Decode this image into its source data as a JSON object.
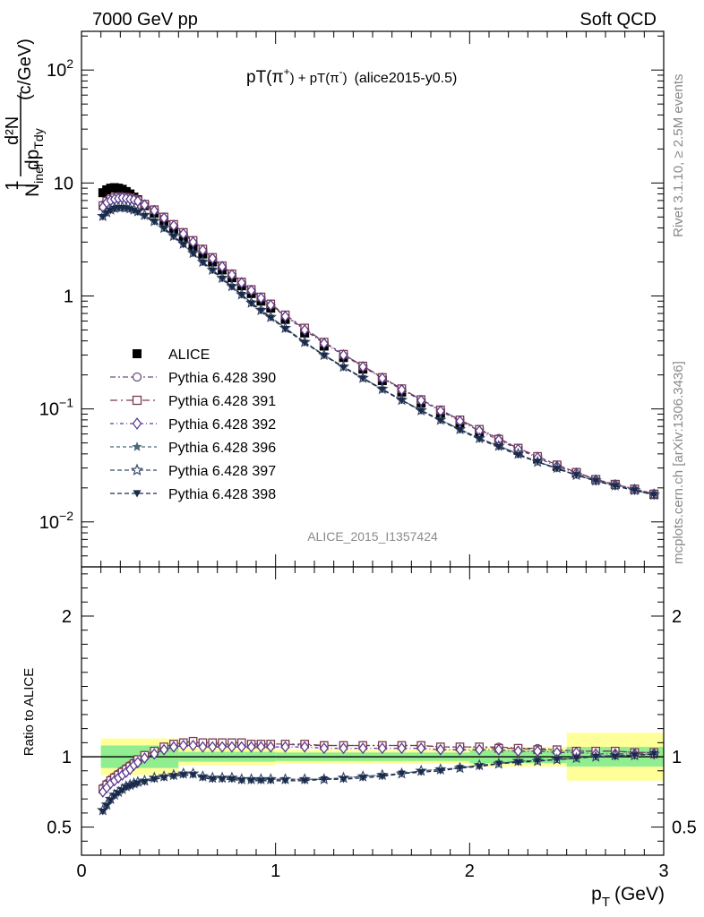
{
  "header": {
    "left": "7000 GeV pp",
    "right": "Soft QCD"
  },
  "side_labels": {
    "rivet": "Rivet 3.1.10, ≥ 2.5M events",
    "mcplots": "mcplots.cern.ch [arXiv:1306.3436]"
  },
  "chart_data": [
    {
      "type": "scatter",
      "title": "pT(π⁺) + pT(π⁻) (alice2015-y0.5)",
      "title_parts": {
        "a": "pT(π",
        "a_sup": "+",
        "b": ") + pT(π",
        "b_sup": "-",
        "c": ")",
        "d": "(alice2015-y0.5)"
      },
      "watermark": "ALICE_2015_I1357424",
      "xlabel": "p_T (GeV)",
      "xlabel_parts": {
        "p": "p",
        "sub": "T",
        "unit": "(GeV)"
      },
      "ylabel": "1/N_inel d²N/dp_T dy (c/GeV)",
      "ylabel_parts": {
        "one": "1",
        "den": "N",
        "den_sub": "inel",
        "num": "d²N",
        "den2": "dp",
        "den2_sub": "Tdy",
        "unit": "(c/GeV)"
      },
      "yscale": "log",
      "xlim": [
        0,
        3
      ],
      "ylim": [
        0.004,
        220
      ],
      "x_ticks": [
        "0",
        "1",
        "2",
        "3"
      ],
      "y_ticks": [
        "10⁻²",
        "10⁻¹",
        "1",
        "10",
        "10²"
      ],
      "y_tick_parts": [
        {
          "base": "10",
          "exp": "−2",
          "value": 0.01
        },
        {
          "base": "10",
          "exp": "−1",
          "value": 0.1
        },
        {
          "base": "1",
          "exp": "",
          "value": 1
        },
        {
          "base": "10",
          "exp": "",
          "value": 10
        },
        {
          "base": "10",
          "exp": "2",
          "value": 100
        }
      ],
      "legend_position": "left-middle",
      "x": [
        0.11,
        0.13,
        0.15,
        0.17,
        0.19,
        0.21,
        0.23,
        0.25,
        0.27,
        0.29,
        0.325,
        0.375,
        0.425,
        0.475,
        0.525,
        0.575,
        0.625,
        0.675,
        0.725,
        0.775,
        0.825,
        0.875,
        0.925,
        0.975,
        1.05,
        1.15,
        1.25,
        1.35,
        1.45,
        1.55,
        1.65,
        1.75,
        1.85,
        1.95,
        2.05,
        2.15,
        2.25,
        2.35,
        2.45,
        2.55,
        2.65,
        2.75,
        2.85,
        2.95
      ],
      "series": [
        {
          "name": "ALICE",
          "color": "#000000",
          "marker": "filled-square",
          "values": [
            8.2,
            8.7,
            9.0,
            9.1,
            9.0,
            8.8,
            8.4,
            8.0,
            7.5,
            7.1,
            6.3,
            5.4,
            4.6,
            3.9,
            3.3,
            2.75,
            2.35,
            2.0,
            1.7,
            1.45,
            1.23,
            1.05,
            0.9,
            0.78,
            0.62,
            0.47,
            0.36,
            0.285,
            0.225,
            0.178,
            0.141,
            0.113,
            0.092,
            0.075,
            0.062,
            0.051,
            0.043,
            0.036,
            0.031,
            0.027,
            0.0237,
            0.0215,
            0.0194,
            0.0175
          ]
        },
        {
          "name": "Pythia 6.428 390",
          "color": "#6b4e7a",
          "marker": "open-circle",
          "dash": "6,3,2,3",
          "values": [
            6.4,
            7.0,
            7.3,
            7.5,
            7.6,
            7.6,
            7.5,
            7.4,
            7.2,
            7.0,
            6.5,
            5.8,
            5.0,
            4.3,
            3.65,
            3.1,
            2.6,
            2.18,
            1.84,
            1.56,
            1.32,
            1.13,
            0.97,
            0.84,
            0.67,
            0.51,
            0.39,
            0.305,
            0.24,
            0.19,
            0.151,
            0.121,
            0.098,
            0.08,
            0.066,
            0.055,
            0.045,
            0.038,
            0.032,
            0.0275,
            0.0238,
            0.0215,
            0.0196,
            0.0177
          ]
        },
        {
          "name": "Pythia 6.428 391",
          "color": "#7a3a4e",
          "marker": "open-square",
          "dash": "8,4,2,4",
          "values": [
            6.3,
            6.9,
            7.2,
            7.4,
            7.5,
            7.5,
            7.5,
            7.4,
            7.2,
            7.0,
            6.5,
            5.8,
            5.0,
            4.3,
            3.65,
            3.1,
            2.6,
            2.19,
            1.85,
            1.57,
            1.33,
            1.14,
            0.98,
            0.85,
            0.68,
            0.52,
            0.39,
            0.305,
            0.24,
            0.19,
            0.151,
            0.121,
            0.098,
            0.08,
            0.066,
            0.054,
            0.045,
            0.038,
            0.032,
            0.0275,
            0.0238,
            0.0215,
            0.0196,
            0.0177
          ]
        },
        {
          "name": "Pythia 6.428 392",
          "color": "#5a3a8c",
          "marker": "open-diamond",
          "dash": "4,3,1,3",
          "values": [
            6.1,
            6.7,
            7.0,
            7.2,
            7.3,
            7.4,
            7.3,
            7.2,
            7.1,
            6.9,
            6.4,
            5.7,
            4.9,
            4.2,
            3.55,
            3.0,
            2.55,
            2.15,
            1.82,
            1.54,
            1.31,
            1.12,
            0.96,
            0.83,
            0.66,
            0.5,
            0.38,
            0.3,
            0.236,
            0.187,
            0.148,
            0.119,
            0.096,
            0.078,
            0.064,
            0.053,
            0.044,
            0.037,
            0.031,
            0.027,
            0.0235,
            0.0213,
            0.0194,
            0.0176
          ]
        },
        {
          "name": "Pythia 6.428 396",
          "color": "#4a6a7a",
          "marker": "filled-star",
          "dash": "4,3",
          "values": [
            5.1,
            5.5,
            5.8,
            6.0,
            6.1,
            6.1,
            6.05,
            5.95,
            5.8,
            5.6,
            5.2,
            4.6,
            4.0,
            3.4,
            2.9,
            2.4,
            2.0,
            1.7,
            1.44,
            1.22,
            1.03,
            0.87,
            0.75,
            0.65,
            0.52,
            0.39,
            0.3,
            0.236,
            0.188,
            0.15,
            0.12,
            0.097,
            0.08,
            0.066,
            0.055,
            0.047,
            0.04,
            0.034,
            0.03,
            0.026,
            0.0232,
            0.021,
            0.0191,
            0.0174
          ]
        },
        {
          "name": "Pythia 6.428 397",
          "color": "#3a4a6a",
          "marker": "open-star",
          "dash": "5,3",
          "values": [
            5.1,
            5.5,
            5.8,
            6.0,
            6.1,
            6.1,
            6.05,
            5.95,
            5.8,
            5.6,
            5.2,
            4.6,
            4.0,
            3.4,
            2.9,
            2.4,
            2.0,
            1.7,
            1.44,
            1.22,
            1.03,
            0.87,
            0.75,
            0.65,
            0.52,
            0.39,
            0.3,
            0.236,
            0.188,
            0.15,
            0.12,
            0.097,
            0.08,
            0.066,
            0.055,
            0.047,
            0.04,
            0.034,
            0.03,
            0.026,
            0.0232,
            0.021,
            0.0191,
            0.0174
          ]
        },
        {
          "name": "Pythia 6.428 398",
          "color": "#1a2a4a",
          "marker": "filled-triangle-down",
          "dash": "5,3",
          "values": [
            5.0,
            5.4,
            5.7,
            5.9,
            6.0,
            6.0,
            5.95,
            5.85,
            5.7,
            5.5,
            5.1,
            4.55,
            3.95,
            3.35,
            2.85,
            2.38,
            1.98,
            1.68,
            1.42,
            1.2,
            1.02,
            0.86,
            0.74,
            0.64,
            0.51,
            0.385,
            0.297,
            0.233,
            0.186,
            0.148,
            0.119,
            0.096,
            0.079,
            0.065,
            0.054,
            0.046,
            0.039,
            0.034,
            0.0295,
            0.026,
            0.023,
            0.0208,
            0.019,
            0.0173
          ]
        }
      ]
    },
    {
      "type": "scatter",
      "title": "",
      "xlabel": "p_T (GeV)",
      "ylabel": "Ratio to ALICE",
      "xlim": [
        0,
        3
      ],
      "ylim": [
        0.3,
        2.35
      ],
      "x_ticks": [
        "0",
        "1",
        "2",
        "3"
      ],
      "y_ticks": [
        "0.5",
        "1",
        "2"
      ],
      "y_tick_values": [
        0.5,
        1,
        2
      ],
      "reference_line": 1,
      "bands": {
        "x_edges": [
          0.1,
          0.5,
          1.0,
          1.5,
          2.0,
          2.5,
          3.0
        ],
        "yellow_halfwidth": [
          0.13,
          0.06,
          0.05,
          0.05,
          0.07,
          0.17
        ],
        "green_halfwidth": [
          0.08,
          0.035,
          0.03,
          0.03,
          0.045,
          0.07
        ]
      },
      "x": [
        0.11,
        0.13,
        0.15,
        0.17,
        0.19,
        0.21,
        0.23,
        0.25,
        0.27,
        0.29,
        0.325,
        0.375,
        0.425,
        0.475,
        0.525,
        0.575,
        0.625,
        0.675,
        0.725,
        0.775,
        0.825,
        0.875,
        0.925,
        0.975,
        1.05,
        1.15,
        1.25,
        1.35,
        1.45,
        1.55,
        1.65,
        1.75,
        1.85,
        1.95,
        2.05,
        2.15,
        2.25,
        2.35,
        2.45,
        2.55,
        2.65,
        2.75,
        2.85,
        2.95
      ],
      "series": [
        {
          "name": "Pythia 6.428 390",
          "color": "#6b4e7a",
          "marker": "open-circle",
          "dash": "6,3,2,3",
          "values": [
            0.78,
            0.81,
            0.84,
            0.86,
            0.88,
            0.9,
            0.92,
            0.94,
            0.96,
            0.98,
            1.01,
            1.04,
            1.07,
            1.09,
            1.1,
            1.11,
            1.09,
            1.09,
            1.09,
            1.09,
            1.09,
            1.09,
            1.09,
            1.09,
            1.09,
            1.08,
            1.08,
            1.08,
            1.08,
            1.08,
            1.08,
            1.08,
            1.07,
            1.07,
            1.07,
            1.07,
            1.06,
            1.06,
            1.05,
            1.04,
            1.04,
            1.04,
            1.03,
            1.03
          ]
        },
        {
          "name": "Pythia 6.428 391",
          "color": "#7a3a4e",
          "marker": "open-square",
          "dash": "8,4,2,4",
          "values": [
            0.77,
            0.8,
            0.83,
            0.85,
            0.87,
            0.89,
            0.91,
            0.93,
            0.95,
            0.98,
            1.01,
            1.04,
            1.07,
            1.09,
            1.1,
            1.11,
            1.1,
            1.1,
            1.1,
            1.1,
            1.1,
            1.09,
            1.09,
            1.09,
            1.09,
            1.09,
            1.08,
            1.08,
            1.08,
            1.08,
            1.08,
            1.08,
            1.07,
            1.07,
            1.07,
            1.06,
            1.06,
            1.05,
            1.05,
            1.04,
            1.04,
            1.04,
            1.03,
            1.03
          ]
        },
        {
          "name": "Pythia 6.428 392",
          "color": "#5a3a8c",
          "marker": "open-diamond",
          "dash": "4,3,1,3",
          "values": [
            0.75,
            0.78,
            0.81,
            0.83,
            0.85,
            0.87,
            0.89,
            0.91,
            0.94,
            0.96,
            0.99,
            1.02,
            1.05,
            1.07,
            1.08,
            1.08,
            1.07,
            1.07,
            1.07,
            1.07,
            1.07,
            1.07,
            1.07,
            1.07,
            1.07,
            1.07,
            1.06,
            1.06,
            1.06,
            1.06,
            1.06,
            1.06,
            1.05,
            1.05,
            1.05,
            1.05,
            1.04,
            1.04,
            1.03,
            1.03,
            1.02,
            1.02,
            1.02,
            1.02
          ]
        },
        {
          "name": "Pythia 6.428 396",
          "color": "#4a6a7a",
          "marker": "filled-star",
          "dash": "4,3",
          "values": [
            0.62,
            0.66,
            0.7,
            0.73,
            0.75,
            0.77,
            0.79,
            0.8,
            0.81,
            0.82,
            0.83,
            0.85,
            0.86,
            0.87,
            0.88,
            0.88,
            0.86,
            0.85,
            0.85,
            0.85,
            0.84,
            0.84,
            0.84,
            0.84,
            0.84,
            0.84,
            0.84,
            0.85,
            0.86,
            0.87,
            0.88,
            0.9,
            0.91,
            0.92,
            0.94,
            0.95,
            0.97,
            0.97,
            0.98,
            0.99,
            1.0,
            1.01,
            1.01,
            1.02
          ]
        },
        {
          "name": "Pythia 6.428 397",
          "color": "#3a4a6a",
          "marker": "open-star",
          "dash": "5,3",
          "values": [
            0.62,
            0.66,
            0.7,
            0.73,
            0.75,
            0.77,
            0.79,
            0.8,
            0.81,
            0.82,
            0.83,
            0.85,
            0.86,
            0.87,
            0.88,
            0.88,
            0.86,
            0.85,
            0.85,
            0.85,
            0.84,
            0.84,
            0.84,
            0.84,
            0.84,
            0.84,
            0.84,
            0.85,
            0.86,
            0.87,
            0.88,
            0.9,
            0.91,
            0.92,
            0.94,
            0.95,
            0.97,
            0.97,
            0.98,
            0.99,
            1.0,
            1.01,
            1.01,
            1.02
          ]
        },
        {
          "name": "Pythia 6.428 398",
          "color": "#1a2a4a",
          "marker": "filled-triangle-down",
          "dash": "5,3",
          "values": [
            0.61,
            0.65,
            0.69,
            0.72,
            0.74,
            0.76,
            0.78,
            0.79,
            0.8,
            0.81,
            0.82,
            0.84,
            0.85,
            0.86,
            0.87,
            0.87,
            0.85,
            0.84,
            0.84,
            0.84,
            0.83,
            0.83,
            0.83,
            0.83,
            0.83,
            0.83,
            0.84,
            0.84,
            0.85,
            0.86,
            0.88,
            0.89,
            0.9,
            0.92,
            0.93,
            0.95,
            0.96,
            0.97,
            0.98,
            0.99,
            1.0,
            1.0,
            1.01,
            1.02
          ]
        }
      ]
    }
  ]
}
